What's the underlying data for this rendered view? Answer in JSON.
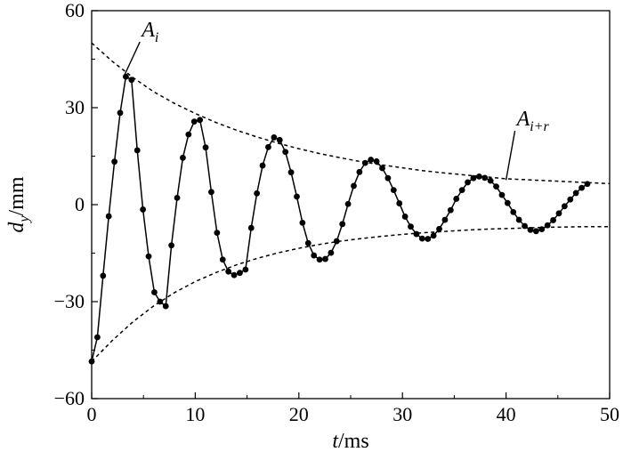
{
  "chart_data": {
    "type": "line",
    "xlabel": {
      "var": "t",
      "unit": "/ms"
    },
    "ylabel": {
      "var": "d",
      "sub": "y",
      "unit": "/mm"
    },
    "xlim": [
      0,
      50
    ],
    "ylim": [
      -60,
      60
    ],
    "xticks": [
      0,
      10,
      20,
      30,
      40,
      50
    ],
    "yticks": [
      -60,
      -30,
      0,
      30,
      60
    ],
    "xtick_labels": [
      "0",
      "10",
      "20",
      "30",
      "40",
      "50"
    ],
    "ytick_labels": [
      "−60",
      "−30",
      "0",
      "30",
      "60"
    ],
    "grid": false,
    "legend": "none",
    "series": [
      {
        "role": "oscillation",
        "style": "solid line with filled circle markers",
        "color": "#000000",
        "x": [
          0,
          0.55,
          1.1,
          1.65,
          2.2,
          2.75,
          3.3,
          3.85,
          4.4,
          4.95,
          5.5,
          6.05,
          6.6,
          7.15,
          7.7,
          8.25,
          8.8,
          9.35,
          9.9,
          10.45,
          11,
          11.55,
          12.1,
          12.65,
          13.2,
          13.75,
          14.3,
          14.85,
          15.4,
          15.95,
          16.5,
          17.05,
          17.6,
          18.15,
          18.7,
          19.25,
          19.8,
          20.35,
          20.9,
          21.45,
          22,
          22.55,
          23.1,
          23.65,
          24.2,
          24.75,
          25.3,
          25.85,
          26.4,
          26.95,
          27.5,
          28.05,
          28.6,
          29.15,
          29.7,
          30.25,
          30.8,
          31.35,
          31.9,
          32.45,
          33,
          33.55,
          34.1,
          34.65,
          35.2,
          35.75,
          36.3,
          36.85,
          37.4,
          37.95,
          38.5,
          39.05,
          39.6,
          40.15,
          40.7,
          41.25,
          41.8,
          42.35,
          42.9,
          43.45,
          44,
          44.55,
          45.1,
          45.65,
          46.2,
          46.75,
          47.3,
          47.85
        ],
        "y": [
          -48.5,
          -41.0,
          -22.0,
          -3.6,
          13.3,
          28.4,
          39.6,
          38.6,
          16.8,
          -1.5,
          -16.0,
          -27.1,
          -30.0,
          -31.4,
          -12.6,
          2.1,
          14.5,
          21.7,
          25.7,
          26.2,
          17.7,
          3.9,
          -8.7,
          -17.0,
          -20.7,
          -21.8,
          -21.1,
          -20.1,
          -7.2,
          3.5,
          12.1,
          17.8,
          20.8,
          20.0,
          16.3,
          10.0,
          2.5,
          -5.6,
          -11.9,
          -15.7,
          -17.0,
          -16.8,
          -14.9,
          -11.3,
          -6.0,
          0.2,
          5.8,
          10.1,
          12.9,
          13.9,
          13.4,
          11.3,
          8.2,
          4.5,
          0.4,
          -3.7,
          -6.8,
          -9.1,
          -10.5,
          -10.6,
          -9.6,
          -7.5,
          -4.7,
          -1.7,
          1.8,
          4.5,
          6.9,
          8.2,
          8.7,
          8.3,
          7.4,
          5.6,
          3.0,
          0.5,
          -2.3,
          -4.7,
          -6.6,
          -7.8,
          -8.2,
          -7.6,
          -6.4,
          -4.8,
          -2.7,
          -0.5,
          1.6,
          3.6,
          5.2,
          6.4
        ]
      },
      {
        "role": "upper-envelope",
        "style": "dashed",
        "color": "#000000",
        "x": [
          0,
          2,
          4,
          6,
          8,
          10,
          12,
          14,
          16,
          18,
          20,
          22,
          24,
          26,
          28,
          30,
          32,
          34,
          36,
          38,
          40,
          42,
          44,
          46,
          48,
          50
        ],
        "y": [
          50.0,
          44.3,
          39.3,
          34.9,
          31.3,
          28.2,
          25.4,
          23.0,
          20.9,
          19.0,
          17.3,
          15.8,
          14.5,
          13.3,
          12.3,
          11.4,
          10.5,
          9.8,
          9.2,
          8.6,
          8.0,
          7.7,
          7.4,
          7.1,
          6.8,
          6.5
        ]
      },
      {
        "role": "lower-envelope",
        "style": "dashed",
        "color": "#000000",
        "x": [
          0,
          2,
          4,
          6,
          8,
          10,
          12,
          14,
          16,
          18,
          20,
          22,
          24,
          26,
          28,
          30,
          32,
          34,
          36,
          38,
          40,
          42,
          44,
          46,
          48,
          50
        ],
        "y": [
          -48.5,
          -42.0,
          -36.2,
          -31.3,
          -27.2,
          -23.8,
          -21.0,
          -18.6,
          -16.6,
          -14.9,
          -13.5,
          -12.3,
          -11.3,
          -10.5,
          -9.8,
          -9.2,
          -8.7,
          -8.3,
          -7.9,
          -7.6,
          -7.4,
          -7.2,
          -7.0,
          -6.9,
          -6.8,
          -6.8
        ]
      }
    ],
    "annotations": [
      {
        "label": "A",
        "sub": "i",
        "point": [
          3.1,
          39.6
        ],
        "text_at": [
          5.0,
          52.0
        ]
      },
      {
        "label": "A",
        "sub": "i+r",
        "point": [
          40.0,
          7.6
        ],
        "text_at": [
          41.2,
          24.5
        ]
      }
    ]
  }
}
